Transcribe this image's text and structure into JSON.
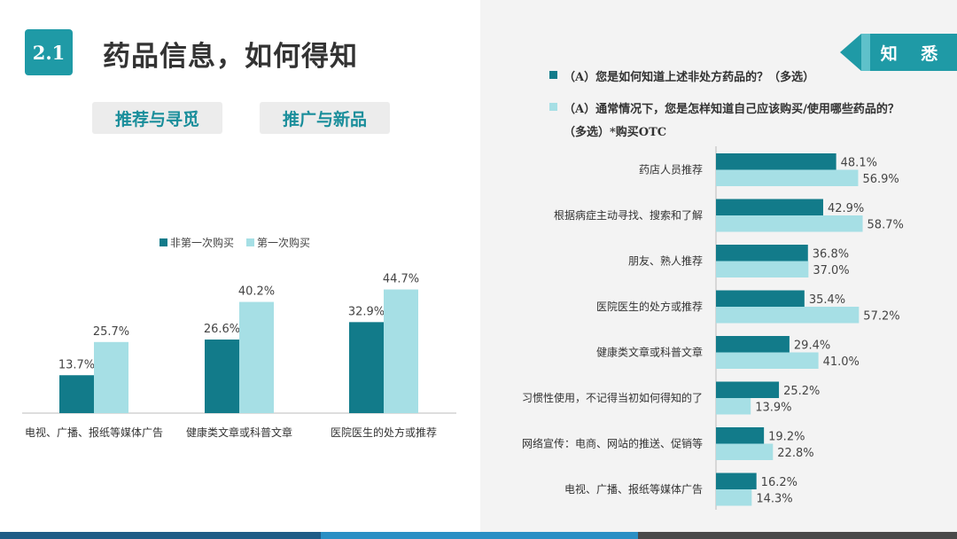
{
  "header": {
    "section_number": "2.1",
    "title": "药品信息，如何得知",
    "tag": "知 悉",
    "pills": [
      "推荐与寻觅",
      "推广与新品"
    ]
  },
  "colors": {
    "dark_teal": "#127b8a",
    "light_teal": "#a6dfe5",
    "accent": "#1f9aa6"
  },
  "questions": {
    "q1": "（A）您是如何知道上述非处方药品的？（多选）",
    "q2": "（A）通常情况下，您是怎样知道自己应该购买/使用哪些药品的？",
    "q3": "（多选）*购买OTC"
  },
  "chart_data": [
    {
      "type": "bar",
      "categories": [
        "电视、广播、报纸等媒体广告",
        "健康类文章或科普文章",
        "医院医生的处方或推荐"
      ],
      "series": [
        {
          "name": "非第一次购买",
          "values": [
            13.7,
            26.6,
            32.9
          ],
          "labels": [
            "13.7%",
            "26.6%",
            "32.9%"
          ]
        },
        {
          "name": "第一次购买",
          "values": [
            25.7,
            40.2,
            44.7
          ],
          "labels": [
            "25.7%",
            "40.2%",
            "44.7%"
          ]
        }
      ],
      "legend": "top",
      "grid": false
    },
    {
      "type": "bar",
      "orientation": "horizontal",
      "categories": [
        "药店人员推荐",
        "根据病症主动寻找、搜索和了解",
        "朋友、熟人推荐",
        "医院医生的处方或推荐",
        "健康类文章或科普文章",
        "习惯性使用，不记得当初如何得知的了",
        "网络宣传：电商、网站的推送、促销等",
        "电视、广播、报纸等媒体广告"
      ],
      "series": [
        {
          "values": [
            48.1,
            42.9,
            36.8,
            35.4,
            29.4,
            25.2,
            19.2,
            16.2
          ],
          "labels": [
            "48.1%",
            "42.9%",
            "36.8%",
            "35.4%",
            "29.4%",
            "25.2%",
            "19.2%",
            "16.2%"
          ]
        },
        {
          "values": [
            56.9,
            58.7,
            37.0,
            57.2,
            41.0,
            13.9,
            22.8,
            14.3
          ],
          "labels": [
            "56.9%",
            "58.7%",
            "37.0%",
            "57.2%",
            "41.0%",
            "13.9%",
            "22.8%",
            "14.3%"
          ]
        }
      ],
      "grid": false
    }
  ]
}
